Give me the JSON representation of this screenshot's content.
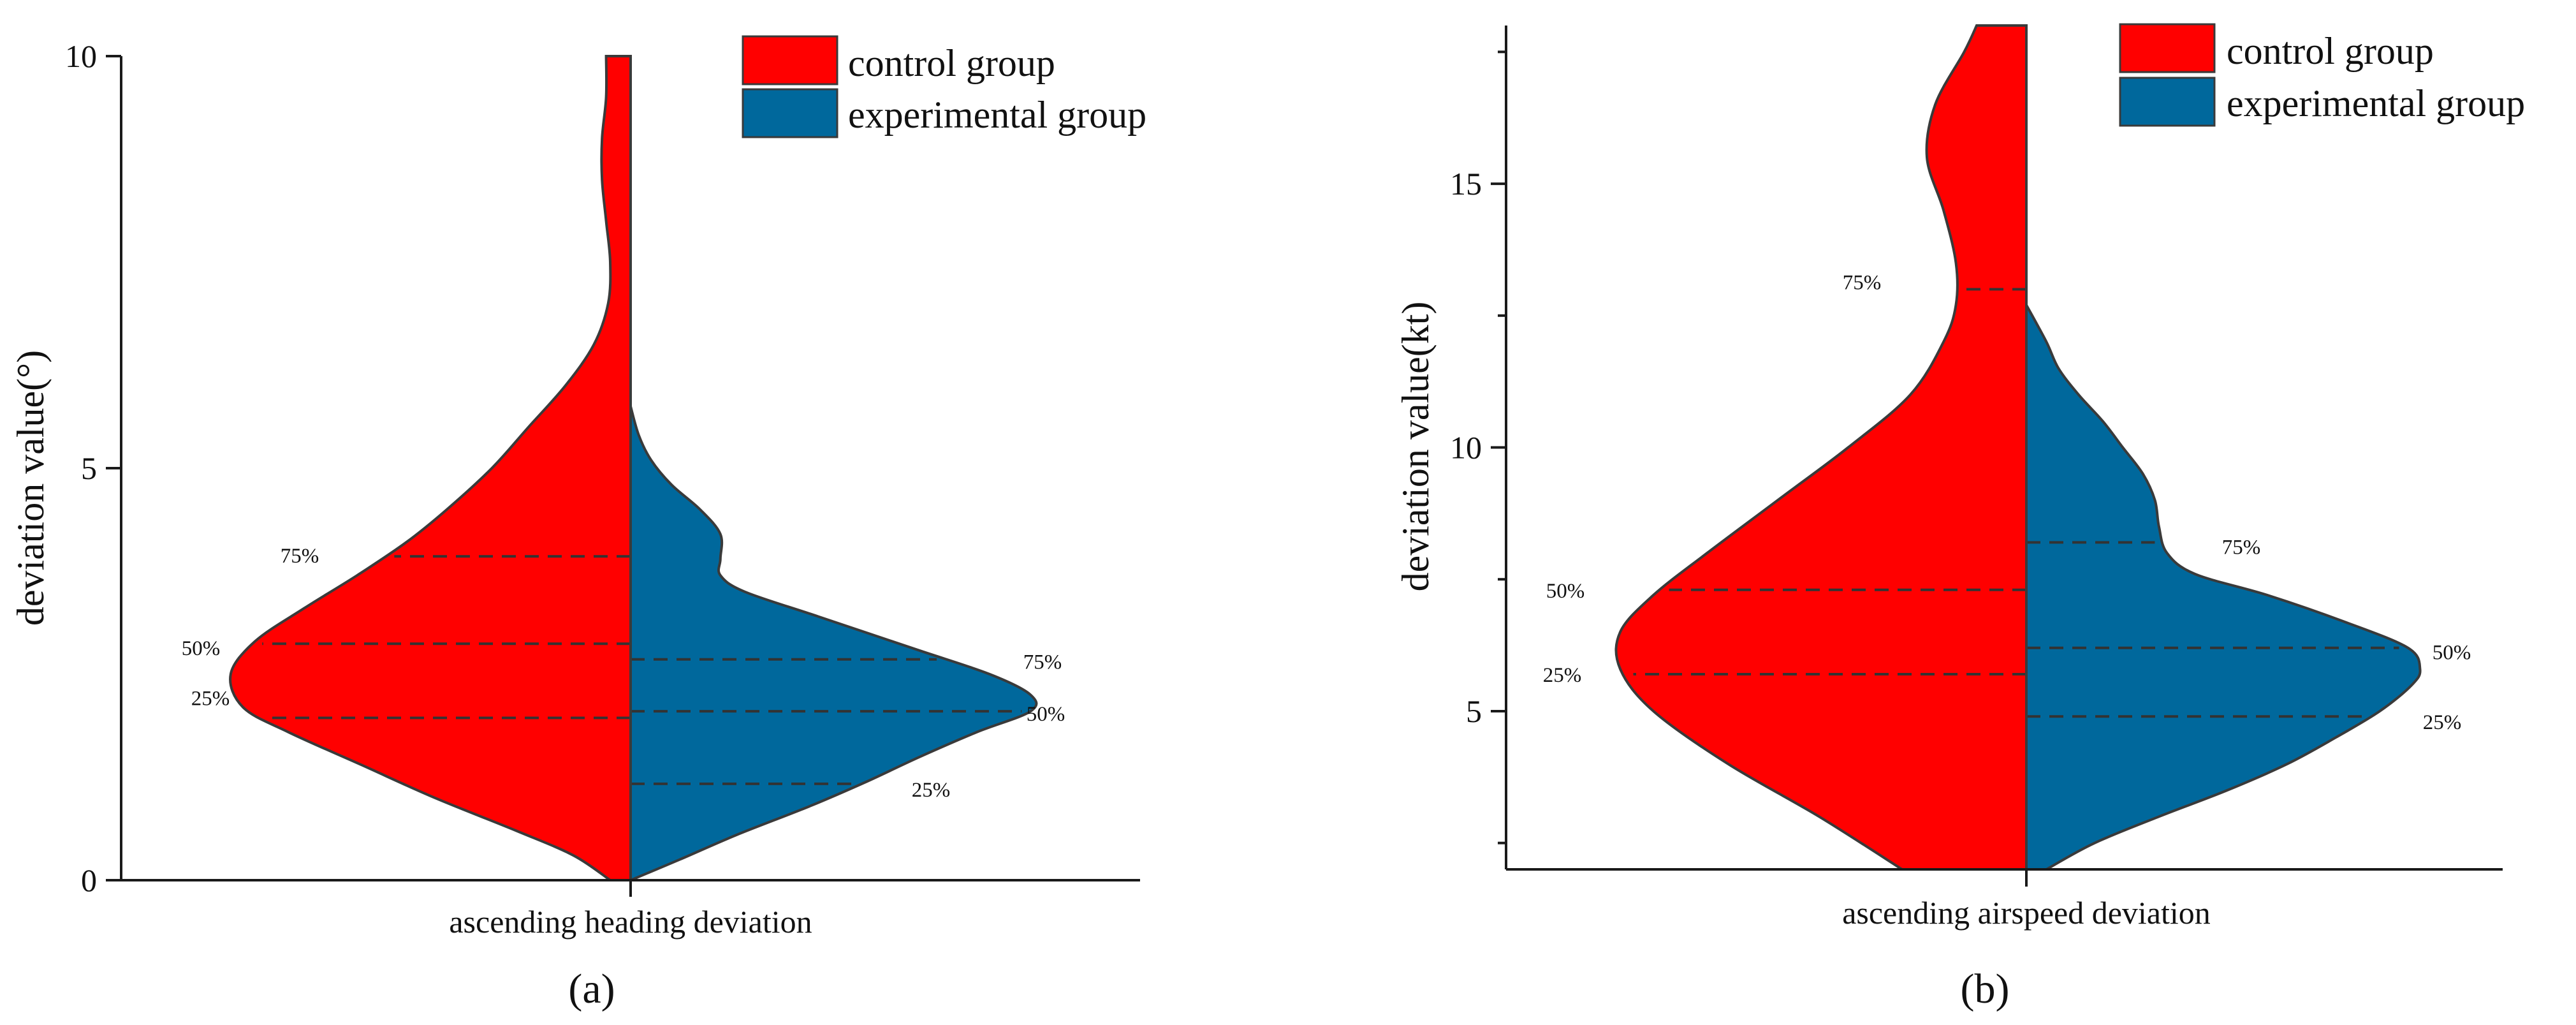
{
  "chart_data": [
    {
      "type": "violin",
      "panel_label": "(a)",
      "category": "ascending heading deviation",
      "ylabel": "deviation value(°)",
      "ylim": [
        0,
        10
      ],
      "yticks": [
        0,
        5,
        10
      ],
      "ytick_labels": [
        "0",
        "5",
        "10"
      ],
      "legend": [
        {
          "name": "control group",
          "color": "#ff0000"
        },
        {
          "name": "experimental group",
          "color": "#00689c"
        }
      ],
      "series": [
        {
          "name": "control group",
          "color": "#ff0000",
          "side": "left",
          "quartiles": [
            {
              "label": "25%",
              "value": 1.97
            },
            {
              "label": "50%",
              "value": 2.87
            },
            {
              "label": "75%",
              "value": 3.93
            }
          ],
          "density": [
            [
              0.0,
              0.05
            ],
            [
              0.3,
              0.14
            ],
            [
              0.6,
              0.28
            ],
            [
              1.0,
              0.48
            ],
            [
              1.4,
              0.66
            ],
            [
              1.8,
              0.84
            ],
            [
              2.1,
              0.95
            ],
            [
              2.5,
              0.98
            ],
            [
              2.9,
              0.92
            ],
            [
              3.3,
              0.8
            ],
            [
              3.7,
              0.67
            ],
            [
              4.1,
              0.55
            ],
            [
              4.5,
              0.45
            ],
            [
              5.0,
              0.34
            ],
            [
              5.5,
              0.25
            ],
            [
              6.0,
              0.16
            ],
            [
              6.5,
              0.09
            ],
            [
              7.0,
              0.055
            ],
            [
              7.5,
              0.05
            ],
            [
              8.0,
              0.06
            ],
            [
              8.5,
              0.07
            ],
            [
              9.0,
              0.07
            ],
            [
              9.5,
              0.06
            ],
            [
              10.0,
              0.06
            ]
          ]
        },
        {
          "name": "experimental group",
          "color": "#00689c",
          "side": "right",
          "quartiles": [
            {
              "label": "25%",
              "value": 1.17
            },
            {
              "label": "50%",
              "value": 2.05
            },
            {
              "label": "75%",
              "value": 2.68
            }
          ],
          "density": [
            [
              0.0,
              0.0
            ],
            [
              0.25,
              0.12
            ],
            [
              0.55,
              0.26
            ],
            [
              0.9,
              0.44
            ],
            [
              1.2,
              0.58
            ],
            [
              1.5,
              0.71
            ],
            [
              1.8,
              0.85
            ],
            [
              2.05,
              0.98
            ],
            [
              2.25,
              0.98
            ],
            [
              2.5,
              0.88
            ],
            [
              2.8,
              0.7
            ],
            [
              3.2,
              0.46
            ],
            [
              3.5,
              0.28
            ],
            [
              3.7,
              0.22
            ],
            [
              3.9,
              0.22
            ],
            [
              4.2,
              0.22
            ],
            [
              4.5,
              0.17
            ],
            [
              4.8,
              0.1
            ],
            [
              5.1,
              0.05
            ],
            [
              5.4,
              0.02
            ],
            [
              5.75,
              0.0
            ]
          ]
        }
      ]
    },
    {
      "type": "violin",
      "panel_label": "(b)",
      "category": "ascending airspeed deviation",
      "ylabel": "deviation value(kt)",
      "ylim": [
        2,
        18
      ],
      "yticks": [
        5,
        10,
        15
      ],
      "ytick_labels": [
        "5",
        "10",
        "15"
      ],
      "legend": [
        {
          "name": "control group",
          "color": "#ff0000"
        },
        {
          "name": "experimental group",
          "color": "#00689c"
        }
      ],
      "series": [
        {
          "name": "control group",
          "color": "#ff0000",
          "side": "left",
          "quartiles": [
            {
              "label": "25%",
              "value": 5.7
            },
            {
              "label": "50%",
              "value": 7.3
            },
            {
              "label": "75%",
              "value": 13.0
            }
          ],
          "density": [
            [
              2.0,
              0.3
            ],
            [
              3.0,
              0.5
            ],
            [
              4.0,
              0.72
            ],
            [
              5.0,
              0.9
            ],
            [
              5.8,
              0.98
            ],
            [
              6.5,
              0.98
            ],
            [
              7.2,
              0.9
            ],
            [
              8.0,
              0.77
            ],
            [
              9.0,
              0.6
            ],
            [
              10.0,
              0.43
            ],
            [
              11.0,
              0.28
            ],
            [
              12.0,
              0.2
            ],
            [
              12.7,
              0.17
            ],
            [
              13.5,
              0.17
            ],
            [
              14.5,
              0.2
            ],
            [
              15.5,
              0.24
            ],
            [
              16.5,
              0.22
            ],
            [
              17.5,
              0.15
            ],
            [
              18.0,
              0.12
            ]
          ]
        },
        {
          "name": "experimental group",
          "color": "#00689c",
          "side": "right",
          "quartiles": [
            {
              "label": "25%",
              "value": 4.9
            },
            {
              "label": "50%",
              "value": 6.2
            },
            {
              "label": "75%",
              "value": 8.2
            }
          ],
          "density": [
            [
              2.0,
              0.05
            ],
            [
              2.5,
              0.17
            ],
            [
              3.0,
              0.33
            ],
            [
              3.5,
              0.5
            ],
            [
              4.0,
              0.65
            ],
            [
              4.5,
              0.77
            ],
            [
              5.0,
              0.88
            ],
            [
              5.5,
              0.96
            ],
            [
              5.8,
              0.98
            ],
            [
              6.2,
              0.95
            ],
            [
              6.7,
              0.79
            ],
            [
              7.2,
              0.6
            ],
            [
              7.6,
              0.42
            ],
            [
              8.0,
              0.35
            ],
            [
              8.5,
              0.33
            ],
            [
              9.0,
              0.32
            ],
            [
              9.5,
              0.29
            ],
            [
              10.0,
              0.24
            ],
            [
              10.5,
              0.19
            ],
            [
              11.0,
              0.13
            ],
            [
              11.5,
              0.08
            ],
            [
              12.0,
              0.05
            ],
            [
              12.7,
              0.0
            ]
          ]
        }
      ]
    }
  ]
}
